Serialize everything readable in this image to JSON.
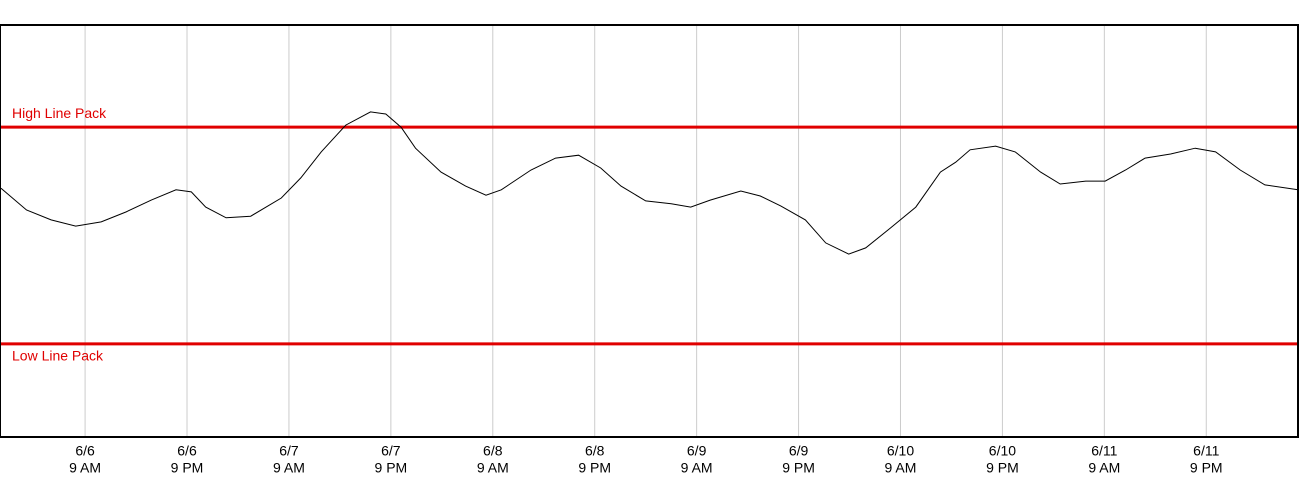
{
  "chart_data": {
    "type": "line",
    "x": [
      -9.9,
      -6.9,
      -4.0,
      -1.1,
      1.9,
      4.8,
      7.8,
      10.7,
      12.5,
      14.2,
      16.6,
      19.5,
      23.1,
      25.4,
      27.8,
      30.7,
      33.6,
      35.4,
      37.2,
      38.9,
      41.9,
      44.8,
      47.2,
      49.0,
      52.5,
      55.4,
      58.1,
      60.7,
      63.1,
      66.0,
      69.0,
      71.3,
      73.6,
      77.2,
      79.5,
      81.9,
      84.8,
      87.2,
      89.9,
      91.9,
      94.8,
      97.8,
      100.7,
      102.5,
      104.2,
      107.2,
      109.5,
      112.5,
      114.8,
      117.8,
      120.1,
      122.5,
      124.8,
      127.8,
      130.7,
      133.1,
      136.0,
      138.9,
      142.8
    ],
    "series": [
      {
        "color": "#000000",
        "values": [
          60.4,
          55.1,
          52.7,
          51.2,
          52.2,
          54.6,
          57.5,
          60.0,
          59.5,
          55.8,
          53.2,
          53.6,
          58.0,
          62.9,
          69.2,
          75.7,
          78.9,
          78.4,
          75.2,
          70.1,
          64.3,
          60.9,
          58.7,
          60.0,
          64.8,
          67.7,
          68.4,
          65.3,
          60.9,
          57.3,
          56.6,
          55.8,
          57.5,
          59.7,
          58.5,
          56.1,
          52.7,
          47.1,
          44.4,
          45.9,
          50.7,
          55.8,
          64.3,
          66.7,
          69.7,
          70.6,
          69.2,
          64.3,
          61.4,
          62.1,
          62.1,
          64.8,
          67.7,
          68.7,
          70.1,
          69.2,
          64.8,
          61.2,
          60.0
        ]
      }
    ],
    "xlim": [
      -9.9,
      142.8
    ],
    "ylim": [
      0,
      100
    ],
    "xticks": [
      {
        "value": 0,
        "label": [
          "6/6",
          "9 AM"
        ]
      },
      {
        "value": 12,
        "label": [
          "6/6",
          "9 PM"
        ]
      },
      {
        "value": 24,
        "label": [
          "6/7",
          "9 AM"
        ]
      },
      {
        "value": 36,
        "label": [
          "6/7",
          "9 PM"
        ]
      },
      {
        "value": 48,
        "label": [
          "6/8",
          "9 AM"
        ]
      },
      {
        "value": 60,
        "label": [
          "6/8",
          "9 PM"
        ]
      },
      {
        "value": 72,
        "label": [
          "6/9",
          "9 AM"
        ]
      },
      {
        "value": 84,
        "label": [
          "6/9",
          "9 PM"
        ]
      },
      {
        "value": 96,
        "label": [
          "6/10",
          "9 AM"
        ]
      },
      {
        "value": 108,
        "label": [
          "6/10",
          "9 PM"
        ]
      },
      {
        "value": 120,
        "label": [
          "6/11",
          "9 AM"
        ]
      },
      {
        "value": 132,
        "label": [
          "6/11",
          "9 PM"
        ]
      }
    ],
    "grid": true,
    "reference_lines": [
      {
        "label": "High Line Pack",
        "value": 75.2,
        "color": "#e00000",
        "label_side": "above"
      },
      {
        "label": "Low Line Pack",
        "value": 22.6,
        "color": "#e00000",
        "label_side": "below"
      }
    ]
  }
}
